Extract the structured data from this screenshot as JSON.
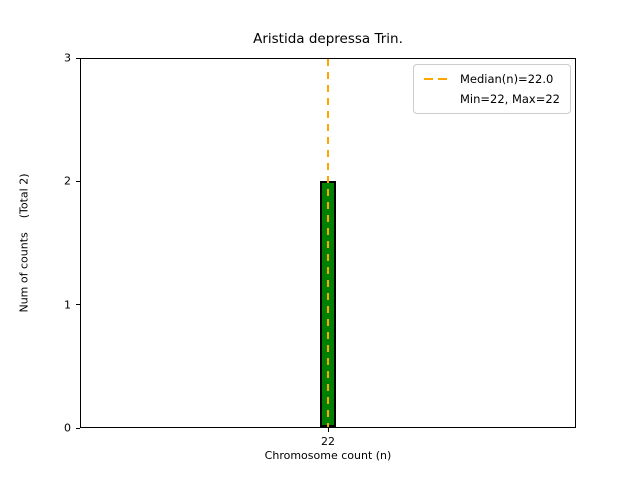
{
  "chart_data": {
    "type": "bar",
    "title": "Aristida depressa Trin.",
    "xlabel": "Chromosome count (n)",
    "ylabel": "Num of counts    (Total 2)",
    "categories": [
      "22"
    ],
    "values": [
      2
    ],
    "total_counts": 2,
    "ylim": [
      0,
      3
    ],
    "yticks": [
      0,
      1,
      2,
      3
    ],
    "median": {
      "value": 22.0,
      "category_index": 0
    },
    "min": 22,
    "max": 22,
    "legend": {
      "position": "upper-right",
      "entries": [
        {
          "label": "Median(n)=22.0",
          "handle": "dashed-line"
        },
        {
          "label": "Min=22, Max=22",
          "handle": "none"
        }
      ]
    },
    "colors": {
      "bar_fill": "#008000",
      "bar_edge": "#000000",
      "median_line": "#FFA500"
    }
  }
}
